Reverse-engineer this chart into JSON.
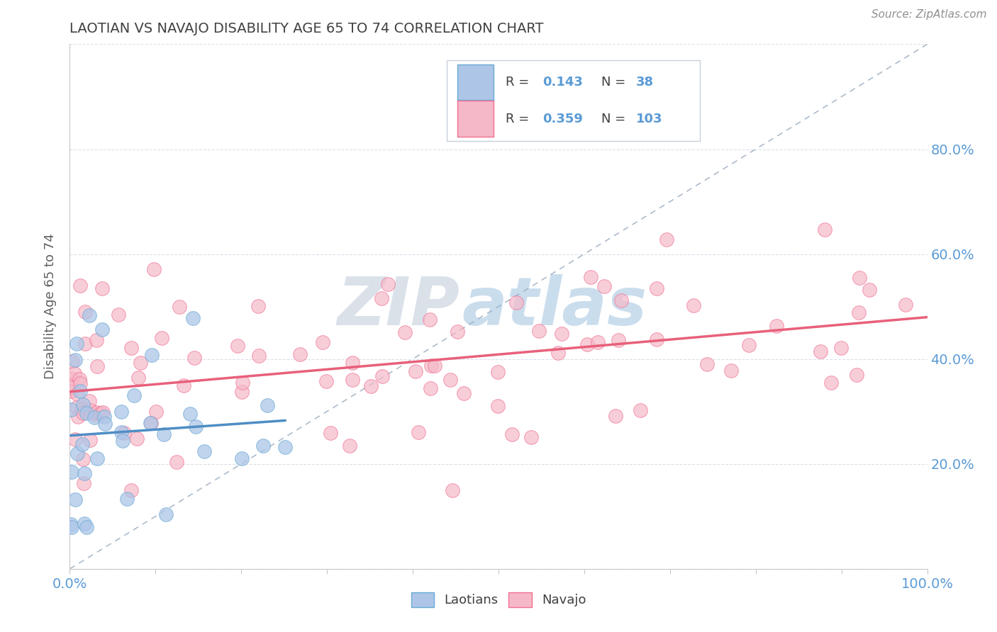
{
  "title": "LAOTIAN VS NAVAJO DISABILITY AGE 65 TO 74 CORRELATION CHART",
  "source_text": "Source: ZipAtlas.com",
  "ylabel": "Disability Age 65 to 74",
  "watermark_zip": "ZIP",
  "watermark_atlas": "atlas",
  "laotian_R": 0.143,
  "laotian_N": 38,
  "navajo_R": 0.359,
  "navajo_N": 103,
  "laotian_color": "#adc6e8",
  "navajo_color": "#f5b8c8",
  "laotian_edge_color": "#6aaad4",
  "navajo_edge_color": "#f07090",
  "laotian_line_color": "#4e8ec4",
  "navajo_line_color": "#e8607a",
  "ref_line_color": "#a0afc0",
  "title_color": "#404040",
  "axis_tick_color": "#5b9bd5",
  "ylabel_color": "#606060",
  "legend_text_color": "#404040",
  "legend_val_color": "#5b9bd5",
  "background_color": "#ffffff",
  "grid_color": "#d8dce8",
  "watermark_zip_color": "#b0bdd0",
  "watermark_atlas_color": "#8ab4d8"
}
